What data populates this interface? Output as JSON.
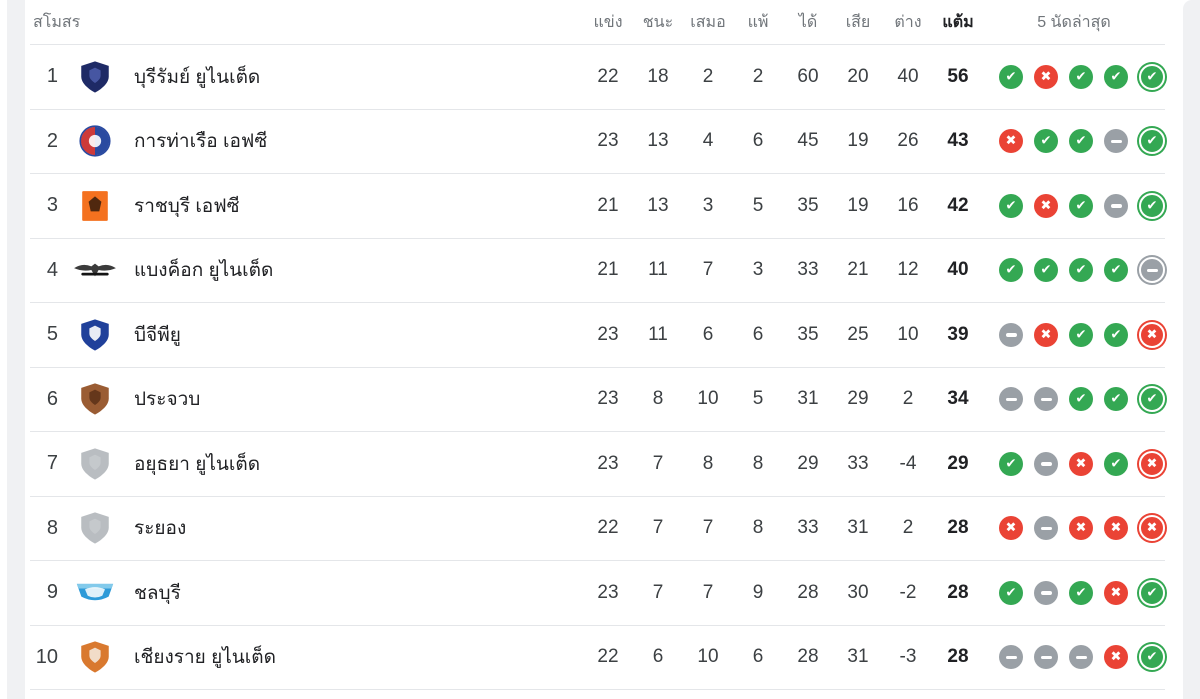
{
  "page": {
    "background": "#ffffff",
    "side_strip_color": "#f0f1f3",
    "divider_color": "#e4e6e9"
  },
  "table": {
    "headers": {
      "club": "สโมสร",
      "played": "แข่ง",
      "wins": "ชนะ",
      "draws": "เสมอ",
      "losses": "แพ้",
      "goals_for": "ได้",
      "goals_against": "เสีย",
      "goal_diff": "ต่าง",
      "points": "แต้ม",
      "last5": "5 นัดล่าสุด"
    },
    "form_colors": {
      "W": "#34a853",
      "L": "#ea4335",
      "D": "#9aa0a6"
    },
    "rows": [
      {
        "rank": "1",
        "team": "บุรีรัมย์ ยูไนเต็ด",
        "logo": {
          "shape": "shield",
          "c1": "#1e2a66",
          "c2": "#4a5ba8"
        },
        "played": "22",
        "wins": "18",
        "draws": "2",
        "losses": "2",
        "gf": "60",
        "ga": "20",
        "gd": "40",
        "points": "56",
        "form": [
          "W",
          "L",
          "W",
          "W",
          "W"
        ]
      },
      {
        "rank": "2",
        "team": "การท่าเรือ เอฟซี",
        "logo": {
          "shape": "circle-split",
          "c1": "#cd3a3a",
          "c2": "#2a4aa0"
        },
        "played": "23",
        "wins": "13",
        "draws": "4",
        "losses": "6",
        "gf": "45",
        "ga": "19",
        "gd": "26",
        "points": "43",
        "form": [
          "L",
          "W",
          "W",
          "D",
          "W"
        ]
      },
      {
        "rank": "3",
        "team": "ราชบุรี เอฟซี",
        "logo": {
          "shape": "square",
          "c1": "#f4711f",
          "c2": "#50280f"
        },
        "played": "21",
        "wins": "13",
        "draws": "3",
        "losses": "5",
        "gf": "35",
        "ga": "19",
        "gd": "16",
        "points": "42",
        "form": [
          "W",
          "L",
          "W",
          "D",
          "W"
        ]
      },
      {
        "rank": "4",
        "team": "แบงค็อก ยูไนเต็ด",
        "logo": {
          "shape": "wings",
          "c1": "#3b3b3b",
          "c2": "#141414"
        },
        "played": "21",
        "wins": "11",
        "draws": "7",
        "losses": "3",
        "gf": "33",
        "ga": "21",
        "gd": "12",
        "points": "40",
        "form": [
          "W",
          "W",
          "W",
          "W",
          "D"
        ]
      },
      {
        "rank": "5",
        "team": "บีจีพียู",
        "logo": {
          "shape": "shield",
          "c1": "#20409a",
          "c2": "#ffffff"
        },
        "played": "23",
        "wins": "11",
        "draws": "6",
        "losses": "6",
        "gf": "35",
        "ga": "25",
        "gd": "10",
        "points": "39",
        "form": [
          "D",
          "L",
          "W",
          "W",
          "L"
        ]
      },
      {
        "rank": "6",
        "team": "ประจวบ",
        "logo": {
          "shape": "shield",
          "c1": "#9a5c33",
          "c2": "#5f3318"
        },
        "played": "23",
        "wins": "8",
        "draws": "10",
        "losses": "5",
        "gf": "31",
        "ga": "29",
        "gd": "2",
        "points": "34",
        "form": [
          "D",
          "D",
          "W",
          "W",
          "W"
        ]
      },
      {
        "rank": "7",
        "team": "อยุธยา ยูไนเต็ด",
        "logo": {
          "shape": "shield",
          "c1": "#b9bdc1",
          "c2": "#c7cacd"
        },
        "played": "23",
        "wins": "7",
        "draws": "8",
        "losses": "8",
        "gf": "29",
        "ga": "33",
        "gd": "-4",
        "points": "29",
        "form": [
          "W",
          "D",
          "L",
          "W",
          "L"
        ]
      },
      {
        "rank": "8",
        "team": "ระยอง",
        "logo": {
          "shape": "shield",
          "c1": "#b9bdc1",
          "c2": "#c7cacd"
        },
        "played": "22",
        "wins": "7",
        "draws": "7",
        "losses": "8",
        "gf": "33",
        "ga": "31",
        "gd": "2",
        "points": "28",
        "form": [
          "L",
          "D",
          "L",
          "L",
          "L"
        ]
      },
      {
        "rank": "9",
        "team": "ชลบุรี",
        "logo": {
          "shape": "crest-wide",
          "c1": "#2d9ad8",
          "c2": "#9fd9f2"
        },
        "played": "23",
        "wins": "7",
        "draws": "7",
        "losses": "9",
        "gf": "28",
        "ga": "30",
        "gd": "-2",
        "points": "28",
        "form": [
          "W",
          "D",
          "W",
          "L",
          "W"
        ]
      },
      {
        "rank": "10",
        "team": "เชียงราย ยูไนเต็ด",
        "logo": {
          "shape": "shield",
          "c1": "#d9792f",
          "c2": "#f3e7d9"
        },
        "played": "22",
        "wins": "6",
        "draws": "10",
        "losses": "6",
        "gf": "28",
        "ga": "31",
        "gd": "-3",
        "points": "28",
        "form": [
          "D",
          "D",
          "D",
          "L",
          "W"
        ]
      }
    ]
  }
}
